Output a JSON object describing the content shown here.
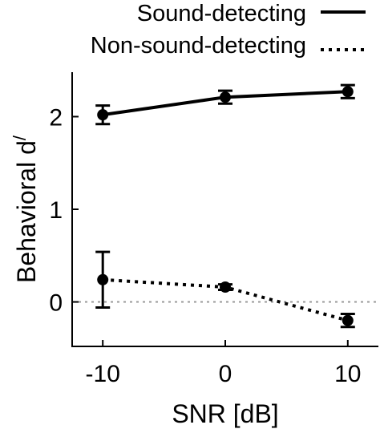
{
  "chart_data": {
    "type": "line",
    "title": "",
    "xlabel": "SNR [dB]",
    "ylabel_main": "Behavioral d",
    "ylabel_sup": "/",
    "x": [
      -10,
      0,
      10
    ],
    "x_ticks": [
      "-10",
      "0",
      "10"
    ],
    "y_ticks": [
      "0",
      "1",
      "2"
    ],
    "xlim": [
      -12.5,
      12.5
    ],
    "ylim": [
      -0.48,
      2.48
    ],
    "grid": false,
    "legend_position": "top-right",
    "reference_line": {
      "y": 0,
      "style": "dotted",
      "color": "#999999"
    },
    "series": [
      {
        "name": "Sound-detecting",
        "line_style": "solid",
        "values": [
          2.02,
          2.21,
          2.27
        ],
        "err": [
          0.1,
          0.07,
          0.07
        ]
      },
      {
        "name": "Non-sound-detecting",
        "line_style": "dotted",
        "values": [
          0.24,
          0.16,
          -0.2
        ],
        "err": [
          0.3,
          0.03,
          0.07
        ]
      }
    ],
    "colors": {
      "series": "#000000",
      "axes": "#000000"
    }
  }
}
